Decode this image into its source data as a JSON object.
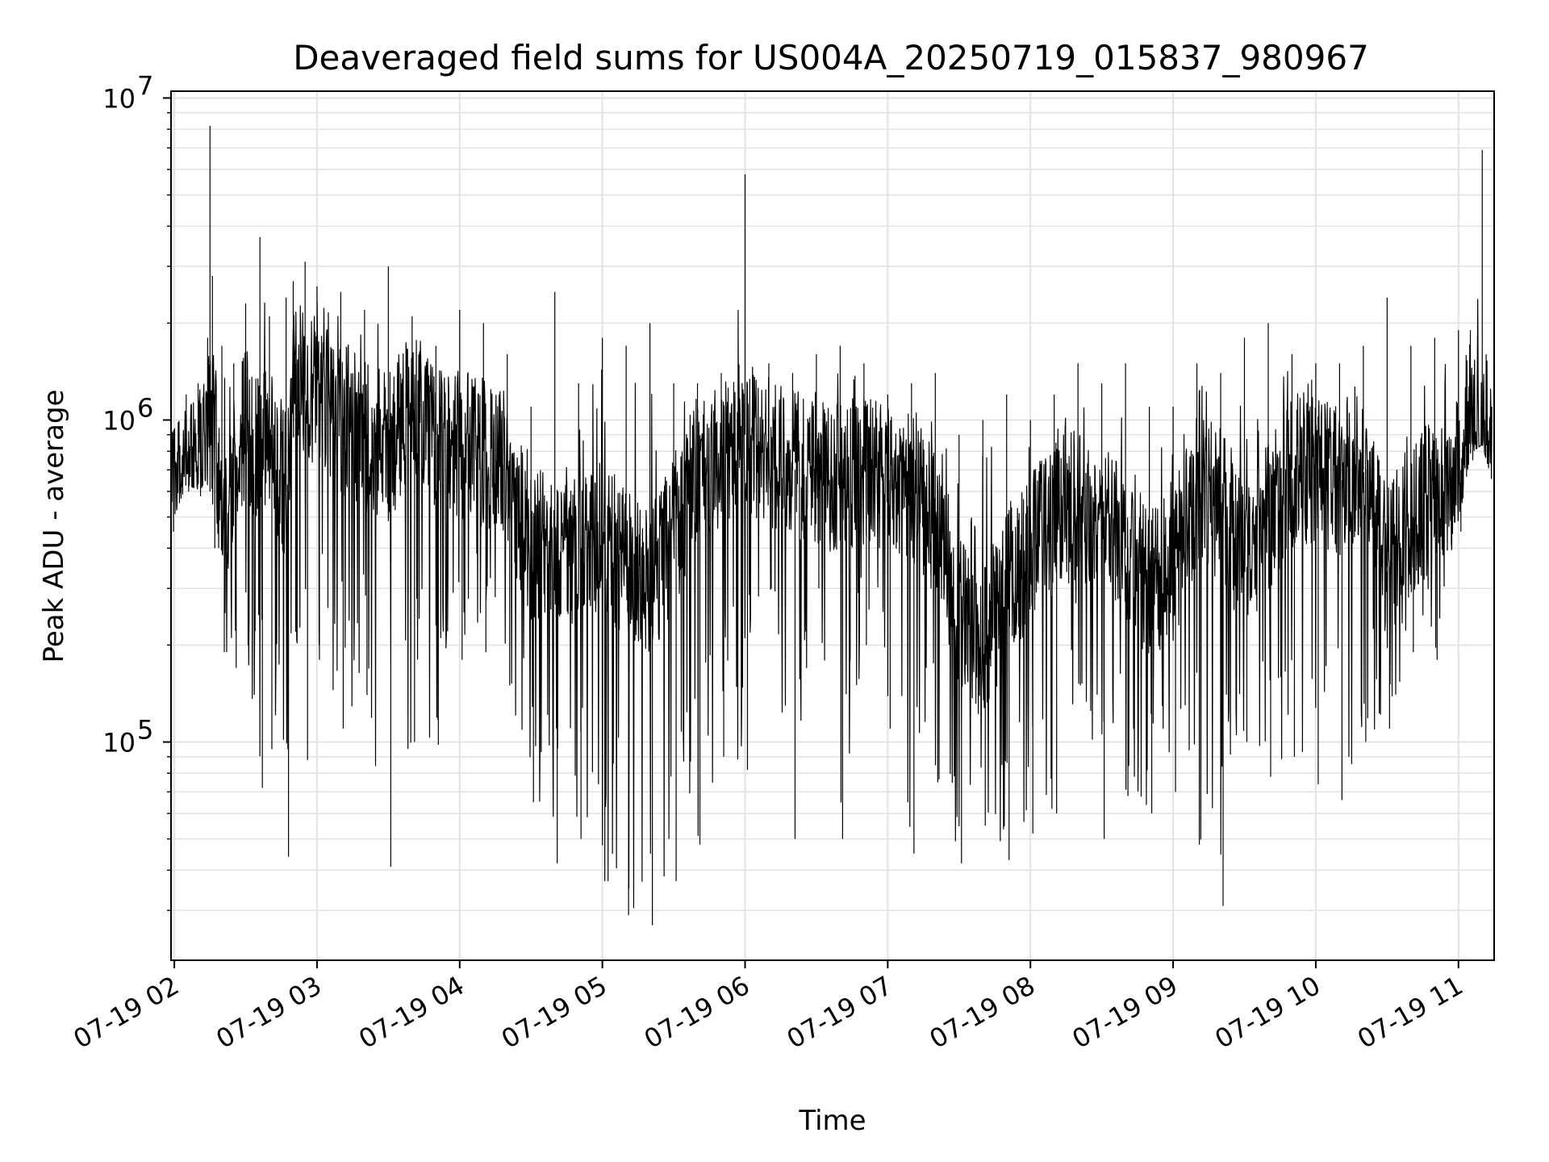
{
  "chart_data": {
    "type": "line",
    "title": "Deaveraged field sums for US004A_20250719_015837_980967",
    "xlabel": "Time",
    "ylabel": "Peak ADU - average",
    "y_scale": "log",
    "ylim": [
      21000,
      10500000
    ],
    "xlim": [
      "2025-07-19 01:58:37",
      "2025-07-19 11:15:00"
    ],
    "x_ticks": [
      "2025-07-19 02:00",
      "2025-07-19 03:00",
      "2025-07-19 04:00",
      "2025-07-19 05:00",
      "2025-07-19 06:00",
      "2025-07-19 07:00",
      "2025-07-19 08:00",
      "2025-07-19 09:00",
      "2025-07-19 10:00",
      "2025-07-19 11:00"
    ],
    "x_tick_labels": [
      "07-19 02",
      "07-19 03",
      "07-19 04",
      "07-19 05",
      "07-19 06",
      "07-19 07",
      "07-19 08",
      "07-19 09",
      "07-19 10",
      "07-19 11"
    ],
    "y_ticks": [
      {
        "value": 100000,
        "base": "10",
        "exp": "5"
      },
      {
        "value": 1000000,
        "base": "10",
        "exp": "6"
      },
      {
        "value": 10000000,
        "base": "10",
        "exp": "7"
      }
    ],
    "grid": true,
    "line_color": "#000000",
    "grid_color": "#e3e3e3",
    "series": [
      {
        "x": [
          "2025-07-19 01:58:37",
          "2025-07-19 02:05:00",
          "2025-07-19 02:10:00",
          "2025-07-19 02:14:00",
          "2025-07-19 02:15:00",
          "2025-07-19 02:16:00",
          "2025-07-19 02:20:00",
          "2025-07-19 02:25:00",
          "2025-07-19 02:30:00",
          "2025-07-19 02:36:00",
          "2025-07-19 02:40:00",
          "2025-07-19 02:47:00",
          "2025-07-19 02:50:00",
          "2025-07-19 02:55:00",
          "2025-07-19 03:00:00",
          "2025-07-19 03:10:00",
          "2025-07-19 03:20:00",
          "2025-07-19 03:30:00",
          "2025-07-19 03:40:00",
          "2025-07-19 03:50:00",
          "2025-07-19 04:00:00",
          "2025-07-19 04:10:00",
          "2025-07-19 04:20:00",
          "2025-07-19 04:30:00",
          "2025-07-19 04:40:00",
          "2025-07-19 04:50:00",
          "2025-07-19 05:00:00",
          "2025-07-19 05:10:00",
          "2025-07-19 05:20:00",
          "2025-07-19 05:30:00",
          "2025-07-19 05:40:00",
          "2025-07-19 05:50:00",
          "2025-07-19 06:00:00",
          "2025-07-19 06:10:00",
          "2025-07-19 06:20:00",
          "2025-07-19 06:30:00",
          "2025-07-19 06:40:00",
          "2025-07-19 06:50:00",
          "2025-07-19 07:00:00",
          "2025-07-19 07:10:00",
          "2025-07-19 07:20:00",
          "2025-07-19 07:30:00",
          "2025-07-19 07:40:00",
          "2025-07-19 07:50:00",
          "2025-07-19 08:00:00",
          "2025-07-19 08:10:00",
          "2025-07-19 08:20:00",
          "2025-07-19 08:30:00",
          "2025-07-19 08:40:00",
          "2025-07-19 08:50:00",
          "2025-07-19 09:00:00",
          "2025-07-19 09:10:00",
          "2025-07-19 09:20:00",
          "2025-07-19 09:30:00",
          "2025-07-19 09:40:00",
          "2025-07-19 09:50:00",
          "2025-07-19 10:00:00",
          "2025-07-19 10:10:00",
          "2025-07-19 10:20:00",
          "2025-07-19 10:30:00",
          "2025-07-19 10:40:00",
          "2025-07-19 10:50:00",
          "2025-07-19 11:00:00",
          "2025-07-19 11:05:00",
          "2025-07-19 11:10:00",
          "2025-07-19 11:14:00"
        ],
        "y_median": [
          700000,
          850000,
          900000,
          850000,
          1500000,
          1200000,
          500000,
          700000,
          1000000,
          800000,
          900000,
          600000,
          1500000,
          1200000,
          1300000,
          1000000,
          900000,
          800000,
          1200000,
          900000,
          850000,
          800000,
          700000,
          400000,
          400000,
          400000,
          450000,
          350000,
          300000,
          450000,
          700000,
          800000,
          900000,
          800000,
          700000,
          700000,
          650000,
          700000,
          650000,
          600000,
          500000,
          250000,
          200000,
          300000,
          400000,
          500000,
          550000,
          500000,
          400000,
          300000,
          350000,
          600000,
          550000,
          350000,
          500000,
          700000,
          700000,
          650000,
          700000,
          350000,
          500000,
          600000,
          700000,
          1100000,
          1000000,
          900000
        ],
        "y_max": [
          1000000,
          1200000,
          1300000,
          1800000,
          8200000,
          2800000,
          1700000,
          1500000,
          2300000,
          3700000,
          2100000,
          2400000,
          2700000,
          3100000,
          2600000,
          2500000,
          2200000,
          3000000,
          2100000,
          1700000,
          2200000,
          2000000,
          1600000,
          1100000,
          2500000,
          1300000,
          1800000,
          1700000,
          2000000,
          1300000,
          1300000,
          1400000,
          5800000,
          1500000,
          1400000,
          1600000,
          1700000,
          1500000,
          1200000,
          1300000,
          1400000,
          900000,
          1000000,
          1200000,
          1000000,
          1200000,
          1500000,
          1300000,
          1500000,
          1100000,
          1100000,
          1500000,
          1400000,
          1800000,
          2000000,
          1600000,
          1500000,
          1500000,
          1700000,
          2400000,
          1700000,
          1800000,
          1900000,
          1900000,
          6900000,
          1100000
        ],
        "y_min": [
          450000,
          600000,
          580000,
          600000,
          700000,
          400000,
          190000,
          170000,
          200000,
          72000,
          95000,
          44000,
          220000,
          88000,
          180000,
          110000,
          140000,
          41000,
          100000,
          98000,
          180000,
          190000,
          150000,
          65000,
          42000,
          50000,
          37000,
          29000,
          27000,
          37000,
          48000,
          90000,
          82000,
          300000,
          50000,
          300000,
          50000,
          200000,
          110000,
          45000,
          75000,
          42000,
          55000,
          43000,
          52000,
          60000,
          150000,
          50000,
          68000,
          60000,
          70000,
          48000,
          31000,
          100000,
          78000,
          90000,
          74000,
          66000,
          100000,
          110000,
          190000,
          180000,
          450000,
          750000,
          800000,
          620000
        ]
      }
    ]
  }
}
